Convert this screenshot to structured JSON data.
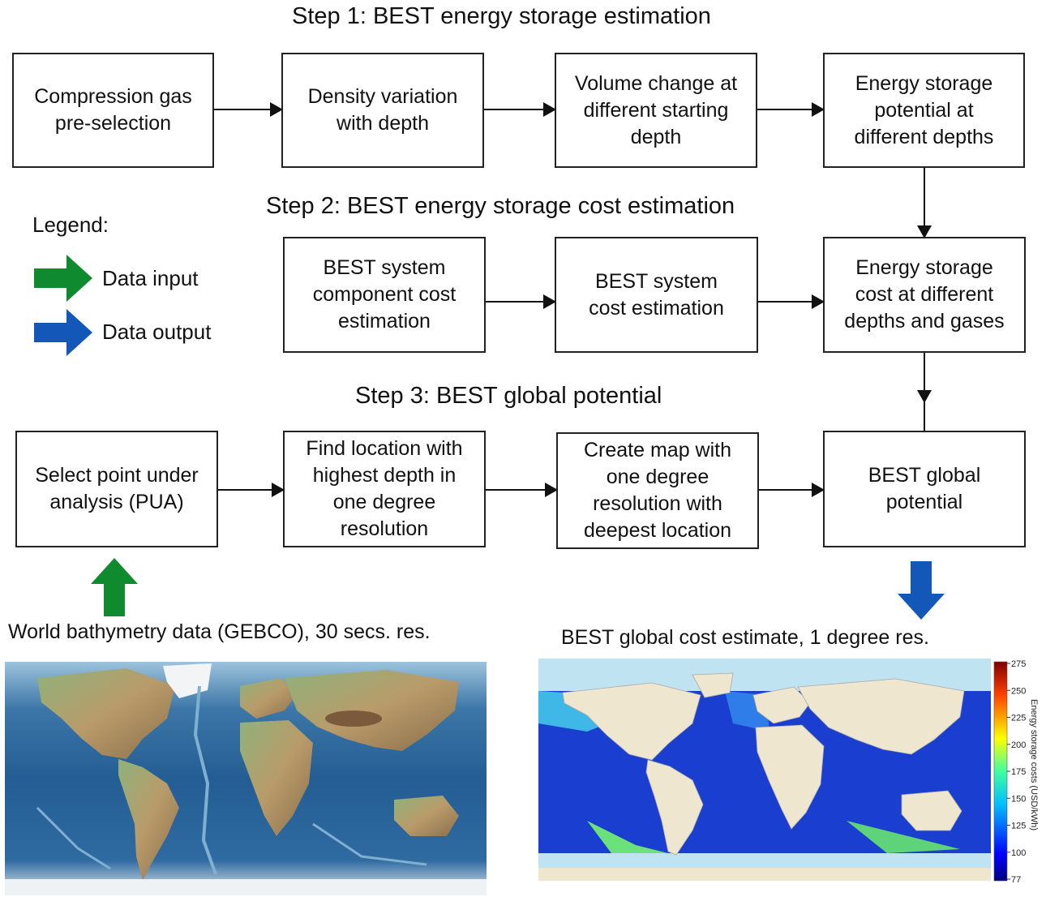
{
  "steps": {
    "step1": "Step 1: BEST energy storage estimation",
    "step2": "Step 2: BEST energy storage cost estimation",
    "step3": "Step 3: BEST global potential"
  },
  "boxes": {
    "s1b1": [
      "Compression gas",
      "pre-selection"
    ],
    "s1b2": [
      "Density variation",
      "with depth"
    ],
    "s1b3": [
      "Volume change at",
      "different starting",
      "depth"
    ],
    "s1b4": [
      "Energy storage",
      "potential at",
      "different depths"
    ],
    "s2b1": [
      "BEST system",
      "component cost",
      "estimation"
    ],
    "s2b2": [
      "BEST system",
      "cost estimation"
    ],
    "s2b3": [
      "Energy storage",
      "cost at different",
      "depths and gases"
    ],
    "s3b1": [
      "Select point under",
      "analysis (PUA)"
    ],
    "s3b2": [
      "Find location with",
      "highest depth in",
      "one degree",
      "resolution"
    ],
    "s3b3": [
      "Create map with",
      "one degree",
      "resolution with",
      "deepest location"
    ],
    "s3b4": [
      "BEST global",
      "potential"
    ]
  },
  "legend": {
    "title": "Legend:",
    "input_label": "Data input",
    "output_label": "Data output",
    "input_color": "#0f8a2e",
    "output_color": "#1357b8"
  },
  "captions": {
    "left": "World bathymetry data (GEBCO), 30 secs. res.",
    "right": "BEST global cost estimate, 1 degree res."
  },
  "colorbar": {
    "label": "Energy storage costs (USD/kWh)",
    "ticks": [
      "275",
      "250",
      "225",
      "200",
      "175",
      "150",
      "125",
      "100",
      "77"
    ]
  }
}
